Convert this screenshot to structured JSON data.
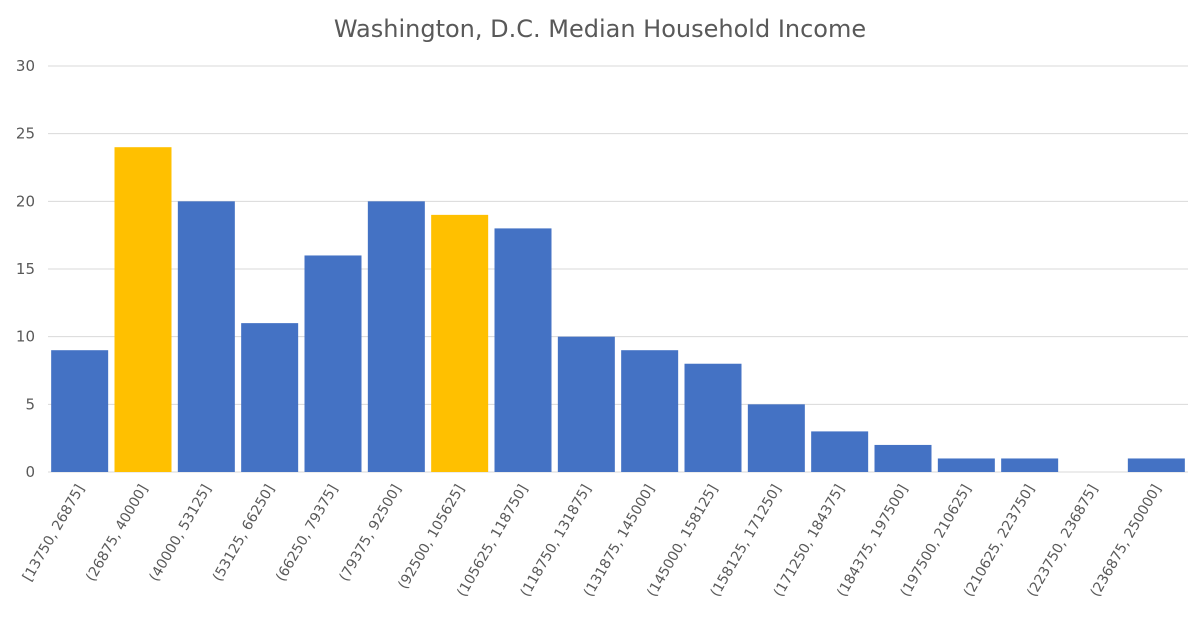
{
  "chart_data": {
    "type": "bar",
    "title": "Washington, D.C. Median Household Income",
    "xlabel": "",
    "ylabel": "",
    "ylim": [
      0,
      30
    ],
    "yticks": [
      0,
      5,
      10,
      15,
      20,
      25,
      30
    ],
    "grid": true,
    "legend": "none",
    "categories": [
      "[13750, 26875]",
      "(26875, 40000]",
      "(40000, 53125]",
      "(53125, 66250]",
      "(66250, 79375]",
      "(79375, 92500]",
      "(92500, 105625]",
      "(105625, 118750]",
      "(118750, 131875]",
      "(131875, 145000]",
      "(145000, 158125]",
      "(158125, 171250]",
      "(171250, 184375]",
      "(184375, 197500]",
      "(197500, 210625]",
      "(210625, 223750]",
      "(223750, 236875]",
      "(236875, 250000]"
    ],
    "values": [
      9,
      24,
      20,
      11,
      16,
      20,
      19,
      18,
      10,
      9,
      8,
      5,
      3,
      2,
      1,
      1,
      0,
      1
    ],
    "highlighted": [
      1,
      6
    ],
    "colors": {
      "bar": "#4472C4",
      "highlight": "#FFC000",
      "grid": "#D9D9D9",
      "text": "#595959"
    }
  }
}
